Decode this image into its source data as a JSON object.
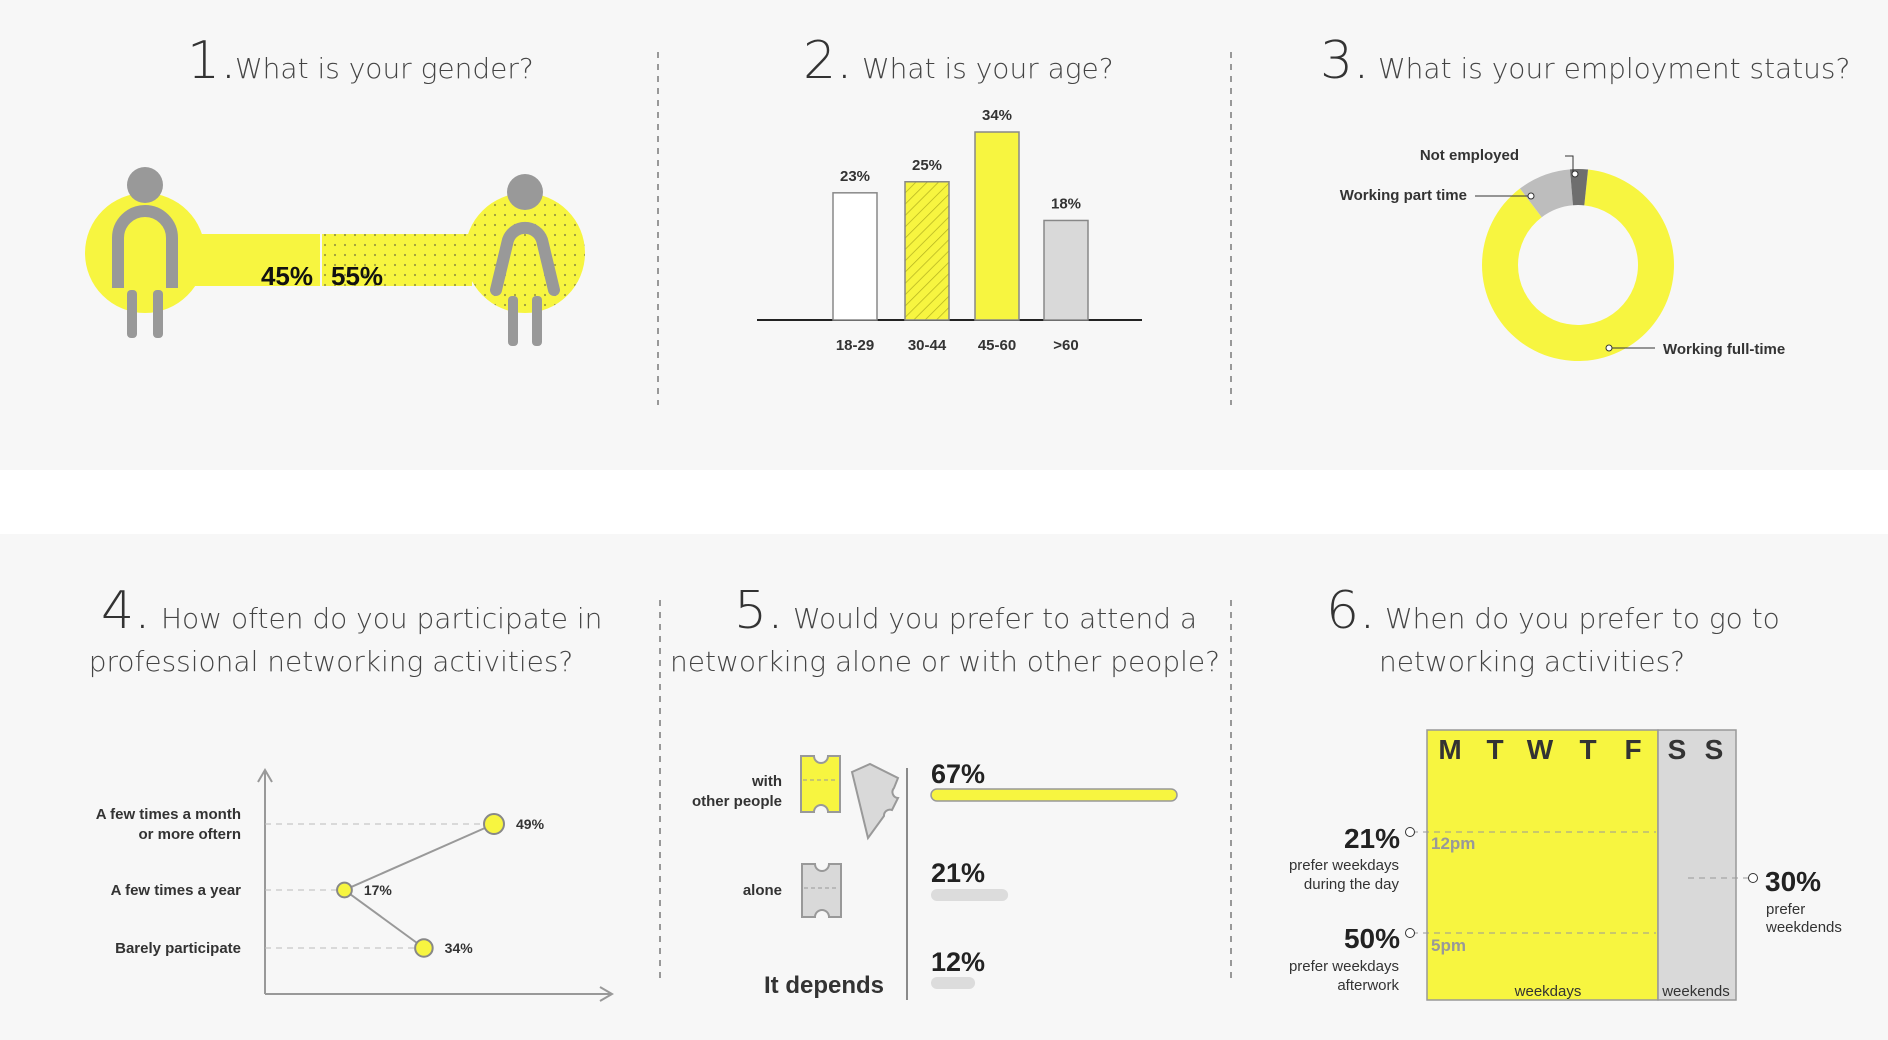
{
  "colors": {
    "yellow": "#f7f540",
    "gray": "#d9d9d9",
    "dark_gray": "#8c8c8c",
    "text": "#333333"
  },
  "q1": {
    "number": "1.",
    "question": "What is your gender?",
    "chart_data": {
      "type": "pictogram",
      "categories": [
        "Male",
        "Female"
      ],
      "values": [
        45,
        55
      ],
      "labels": [
        "45%",
        "55%"
      ]
    }
  },
  "q2": {
    "number": "2.",
    "question": "What is your age?",
    "chart_data": {
      "type": "bar",
      "categories": [
        "18-29",
        "30-44",
        "45-60",
        ">60"
      ],
      "values": [
        23,
        25,
        34,
        18
      ],
      "labels": [
        "23%",
        "25%",
        "34%",
        "18%"
      ],
      "ylim": [
        0,
        34
      ]
    }
  },
  "q3": {
    "number": "3.",
    "question": "What is your employment status?",
    "chart_data": {
      "type": "pie",
      "categories": [
        "Working full-time",
        "Working part time",
        "Not employed"
      ],
      "values": [
        88,
        9,
        3
      ]
    }
  },
  "q4": {
    "number": "4.",
    "question_line1": "How often do you participate in",
    "question_line2": "professional networking activities?",
    "chart_data": {
      "type": "scatter",
      "categories": [
        "A few times a month or more oftern",
        "A few times a year",
        "Barely participate"
      ],
      "category_lines": [
        [
          "A few times a month",
          "or more oftern"
        ],
        [
          "A few times a year"
        ],
        [
          "Barely participate"
        ]
      ],
      "values": [
        49,
        17,
        34
      ],
      "labels": [
        "49%",
        "17%",
        "34%"
      ],
      "xlim": [
        0,
        66
      ]
    }
  },
  "q5": {
    "number": "5.",
    "question_line1": "Would you prefer to attend a",
    "question_line2": "networking  alone or with other people?",
    "chart_data": {
      "type": "bar",
      "categories": [
        "with other people",
        "alone",
        "It depends"
      ],
      "category_lines": [
        [
          "with",
          "other people"
        ],
        [
          "alone"
        ],
        [
          "It depends"
        ]
      ],
      "values": [
        67,
        21,
        12
      ],
      "labels": [
        "67%",
        "21%",
        "12%"
      ],
      "xlim": [
        0,
        67
      ]
    }
  },
  "q6": {
    "number": "6.",
    "question_line1": "When do you prefer to go to",
    "question_line2": "networking activities?",
    "days": [
      "M",
      "T",
      "W",
      "T",
      "F",
      "S",
      "S"
    ],
    "times": [
      "12pm",
      "5pm"
    ],
    "weekdays_label": "weekdays",
    "weekends_label": "weekends",
    "chart_data": {
      "type": "table",
      "categories": [
        "prefer weekdays during the day",
        "prefer weekdays afterwork",
        "prefer weekdends"
      ],
      "values": [
        21,
        50,
        30
      ],
      "labels": [
        "21%",
        "50%",
        "30%"
      ],
      "notes": [
        [
          "prefer weekdays",
          "during the day"
        ],
        [
          "prefer weekdays",
          "afterwork"
        ],
        [
          "prefer",
          "weekdends"
        ]
      ]
    }
  }
}
